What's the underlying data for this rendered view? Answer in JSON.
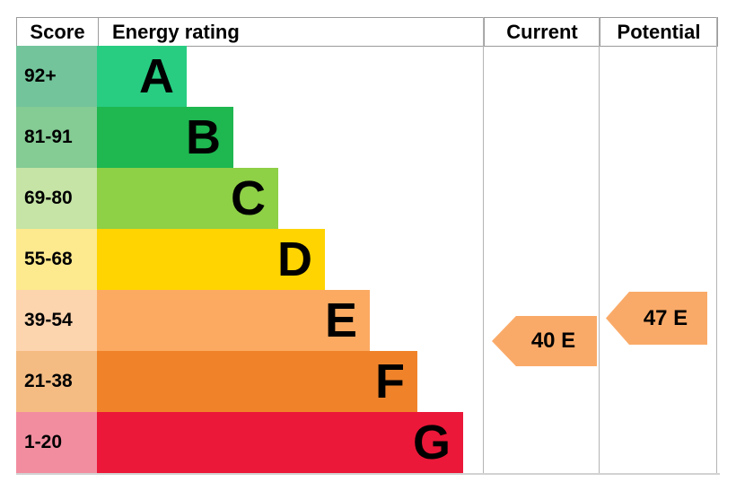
{
  "chart_data": {
    "type": "bar",
    "title": "Energy efficiency rating chart (EPC)",
    "categories": [
      "A",
      "B",
      "C",
      "D",
      "E",
      "F",
      "G"
    ],
    "band_score_ranges": [
      "92+",
      "81-91",
      "69-80",
      "55-68",
      "39-54",
      "21-38",
      "1-20"
    ],
    "bar_lengths_relative": [
      1,
      2,
      3,
      4,
      5,
      6,
      7
    ],
    "band_colors": [
      "#28cd82",
      "#1eb750",
      "#8ed046",
      "#ffd400",
      "#fcaa62",
      "#f0832a",
      "#eb1839"
    ],
    "current": {
      "score": 40,
      "band": "E"
    },
    "potential": {
      "score": 47,
      "band": "E"
    },
    "legend_position": "none",
    "grid": false
  },
  "header": {
    "score": "Score",
    "energy_rating": "Energy rating",
    "current": "Current",
    "potential": "Potential"
  },
  "bands": [
    {
      "rating": "A",
      "score": "92+",
      "color": "#28cd82",
      "score_bg": "#73c49b"
    },
    {
      "rating": "B",
      "score": "81-91",
      "color": "#1eb750",
      "score_bg": "#84cb94"
    },
    {
      "rating": "C",
      "score": "69-80",
      "color": "#8ed046",
      "score_bg": "#c5e4a5"
    },
    {
      "rating": "D",
      "score": "55-68",
      "color": "#ffd400",
      "score_bg": "#fde98e"
    },
    {
      "rating": "E",
      "score": "39-54",
      "color": "#fcaa62",
      "score_bg": "#fcd4ae"
    },
    {
      "rating": "F",
      "score": "21-38",
      "color": "#f0832a",
      "score_bg": "#f4bc83"
    },
    {
      "rating": "G",
      "score": "1-20",
      "color": "#eb1839",
      "score_bg": "#f28da0"
    }
  ],
  "current_arrow": {
    "label": "40 E",
    "color": "#faaa68"
  },
  "potential_arrow": {
    "label": "47 E",
    "color": "#faaa68"
  }
}
